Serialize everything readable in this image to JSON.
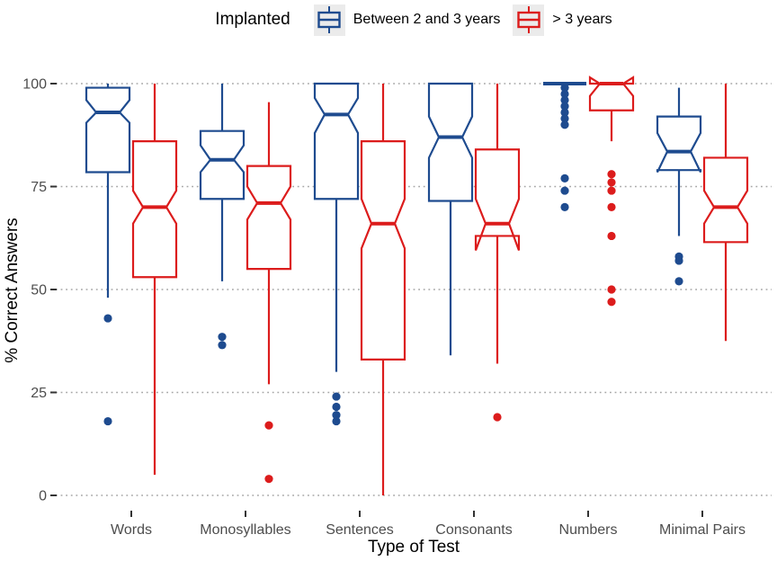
{
  "legend": {
    "title": "Implanted",
    "items": [
      {
        "label": "Between 2 and 3 years",
        "color": "#1e4b8f"
      },
      {
        "label": "> 3 years",
        "color": "#dc1c1c"
      }
    ]
  },
  "chart_data": {
    "type": "boxplot",
    "variant": "notched",
    "title": "",
    "xlabel": "Type of Test",
    "ylabel": "% Correct Answers",
    "ylim": [
      0,
      100
    ],
    "yticks": [
      0,
      25,
      50,
      75,
      100
    ],
    "grid": "dotted horizontal",
    "legend_position": "top",
    "categories": [
      "Words",
      "Monosyllables",
      "Sentences",
      "Consonants",
      "Numbers",
      "Minimal Pairs"
    ],
    "series": [
      {
        "name": "Between 2 and 3 years",
        "color": "#1e4b8f",
        "boxes": [
          {
            "low": 48,
            "q1": 78.5,
            "median": 93,
            "q3": 99,
            "high": 100,
            "notch_low": 90.5,
            "notch_high": 96,
            "outliers": [
              43,
              18
            ]
          },
          {
            "low": 52,
            "q1": 72,
            "median": 81.5,
            "q3": 88.5,
            "high": 100,
            "notch_low": 78.5,
            "notch_high": 85,
            "outliers": [
              38.5,
              36.5
            ]
          },
          {
            "low": 30,
            "q1": 72,
            "median": 92.5,
            "q3": 100,
            "high": 100,
            "notch_low": 88,
            "notch_high": 96.5,
            "outliers": [
              24,
              21.5,
              19.5,
              18
            ]
          },
          {
            "low": 34,
            "q1": 71.5,
            "median": 87,
            "q3": 100,
            "high": 100,
            "notch_low": 82,
            "notch_high": 92,
            "outliers": []
          },
          {
            "low": 100,
            "q1": 100,
            "median": 100,
            "q3": 100,
            "high": 100,
            "notch_low": 100,
            "notch_high": 100,
            "outliers": [
              99,
              97.5,
              96,
              94.5,
              93,
              91.5,
              90,
              77,
              74,
              70
            ]
          },
          {
            "low": 63,
            "q1": 79,
            "median": 83.5,
            "q3": 92,
            "high": 99,
            "notch_low": 78.5,
            "notch_high": 88,
            "outliers": [
              58,
              57,
              52
            ]
          }
        ]
      },
      {
        "name": "> 3 years",
        "color": "#dc1c1c",
        "boxes": [
          {
            "low": 5,
            "q1": 53,
            "median": 70,
            "q3": 86,
            "high": 100,
            "notch_low": 66,
            "notch_high": 74,
            "outliers": []
          },
          {
            "low": 27,
            "q1": 55,
            "median": 71,
            "q3": 80,
            "high": 95.5,
            "notch_low": 67,
            "notch_high": 75,
            "outliers": [
              17,
              4
            ]
          },
          {
            "low": 0,
            "q1": 33,
            "median": 66,
            "q3": 86,
            "high": 100,
            "notch_low": 60,
            "notch_high": 72,
            "outliers": []
          },
          {
            "low": 32,
            "q1": 63,
            "median": 66,
            "q3": 84,
            "high": 100,
            "notch_low": 59.5,
            "notch_high": 72,
            "outliers": [
              19
            ]
          },
          {
            "low": 86,
            "q1": 93.5,
            "median": 100,
            "q3": 100,
            "high": 100,
            "notch_low": 97,
            "notch_high": 101.5,
            "outliers": [
              78,
              76,
              74,
              70,
              63,
              50,
              47
            ]
          },
          {
            "low": 37.5,
            "q1": 61.5,
            "median": 70,
            "q3": 82,
            "high": 100,
            "notch_low": 66,
            "notch_high": 74,
            "outliers": []
          }
        ]
      }
    ]
  },
  "style": {
    "grid_color": "#a6a6a6",
    "tick_color": "#333333",
    "tick_label_color": "#4d4d4d",
    "key_background": "#ebebeb"
  }
}
